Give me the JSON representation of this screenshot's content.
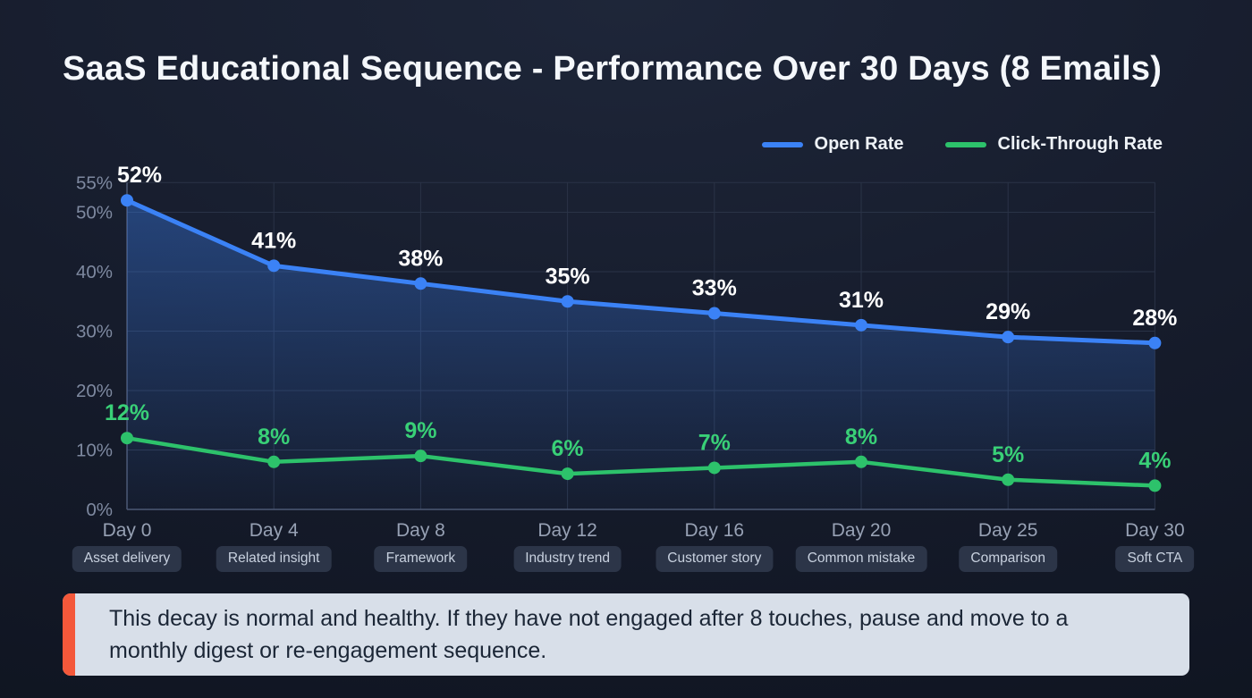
{
  "page": {
    "title": "SaaS Educational Sequence - Performance Over 30 Days (8 Emails)"
  },
  "chart_data": {
    "type": "line",
    "title": "SaaS Educational Sequence - Performance Over 30 Days (8 Emails)",
    "categories": [
      "Day 0",
      "Day 4",
      "Day 8",
      "Day 12",
      "Day 16",
      "Day 20",
      "Day 25",
      "Day 30"
    ],
    "email_types": [
      "Asset delivery",
      "Related insight",
      "Framework",
      "Industry trend",
      "Customer story",
      "Common mistake",
      "Comparison",
      "Soft CTA"
    ],
    "series": [
      {
        "name": "Open Rate",
        "values": [
          52,
          41,
          38,
          35,
          33,
          31,
          29,
          28
        ],
        "color": "#3b82f6",
        "label_color": "#ffffff",
        "area": true
      },
      {
        "name": "Click-Through Rate",
        "values": [
          12,
          8,
          9,
          6,
          7,
          8,
          5,
          4
        ],
        "color": "#2dc26b",
        "label_color": "#39d077",
        "area": false
      }
    ],
    "unit": "%",
    "y_ticks": [
      0,
      10,
      20,
      30,
      40,
      50,
      55
    ],
    "ylim": [
      0,
      55
    ],
    "grid": true,
    "legend_position": "top-right"
  },
  "callout": {
    "text": "This decay is normal and healthy. If they have not engaged after 8 touches, pause and move to a monthly digest or re-engagement sequence.",
    "accent_color": "#f4583a",
    "background": "#d8dfe9",
    "text_color": "#1b2636"
  },
  "colors": {
    "background": "#141a29",
    "grid": "#2a3347",
    "axis": "#4d5873",
    "tick_label": "#7e89a0",
    "x_label": "#97a1b4",
    "pill_bg": "#2c3548",
    "pill_text": "#c8d1df"
  }
}
